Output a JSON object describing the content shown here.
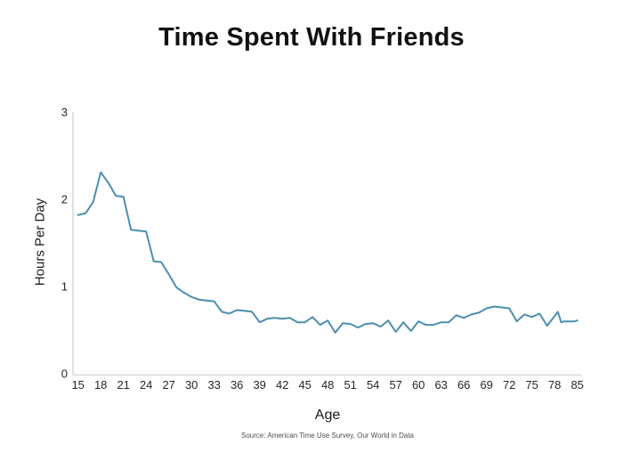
{
  "chart_data": {
    "type": "line",
    "title": "Time Spent With Friends",
    "xlabel": "Age",
    "ylabel": "Hours Per Day",
    "source": "Source: American Time Use Survey, Our World in Data",
    "x": [
      15,
      16,
      17,
      18,
      19,
      20,
      21,
      22,
      23,
      24,
      25,
      26,
      27,
      28,
      29,
      30,
      31,
      32,
      33,
      34,
      35,
      36,
      37,
      38,
      39,
      40,
      41,
      42,
      43,
      44,
      45,
      46,
      47,
      48,
      49,
      50,
      51,
      52,
      53,
      54,
      55,
      56,
      57,
      58,
      59,
      60,
      61,
      62,
      63,
      64,
      65,
      66,
      67,
      68,
      69,
      70,
      71,
      72,
      73,
      74,
      75,
      76,
      77,
      78,
      79,
      80,
      81,
      82,
      83,
      84,
      85
    ],
    "values": [
      1.82,
      1.84,
      1.97,
      2.31,
      2.19,
      2.04,
      2.03,
      1.65,
      1.64,
      1.63,
      1.29,
      1.28,
      1.14,
      0.99,
      0.93,
      0.88,
      0.85,
      0.84,
      0.83,
      0.71,
      0.69,
      0.73,
      0.72,
      0.71,
      0.59,
      0.63,
      0.64,
      0.63,
      0.64,
      0.59,
      0.59,
      0.65,
      0.56,
      0.61,
      0.47,
      0.58,
      0.57,
      0.53,
      0.57,
      0.58,
      0.54,
      0.61,
      0.48,
      0.59,
      0.49,
      0.6,
      0.56,
      0.56,
      0.59,
      0.59,
      0.67,
      0.64,
      0.68,
      0.7,
      0.75,
      0.77,
      0.76,
      0.75,
      0.6,
      0.68,
      0.65,
      0.69,
      0.55,
      0.66,
      0.71,
      0.59,
      0.6,
      0.6,
      0.6,
      0.6,
      0.61
    ],
    "xticks": [
      "15",
      "18",
      "21",
      "24",
      "27",
      "30",
      "33",
      "36",
      "39",
      "42",
      "45",
      "48",
      "51",
      "54",
      "57",
      "60",
      "63",
      "66",
      "69",
      "72",
      "75",
      "78",
      "85"
    ],
    "yticks": [
      "0",
      "1",
      "2",
      "3"
    ],
    "ylim": [
      0,
      3
    ],
    "grid": false,
    "legend": "none",
    "line_color": "#4c8eb0",
    "axis_color": "#d9d9d9",
    "tick_text_color": "#262626",
    "source_color": "#4d4d4d"
  }
}
